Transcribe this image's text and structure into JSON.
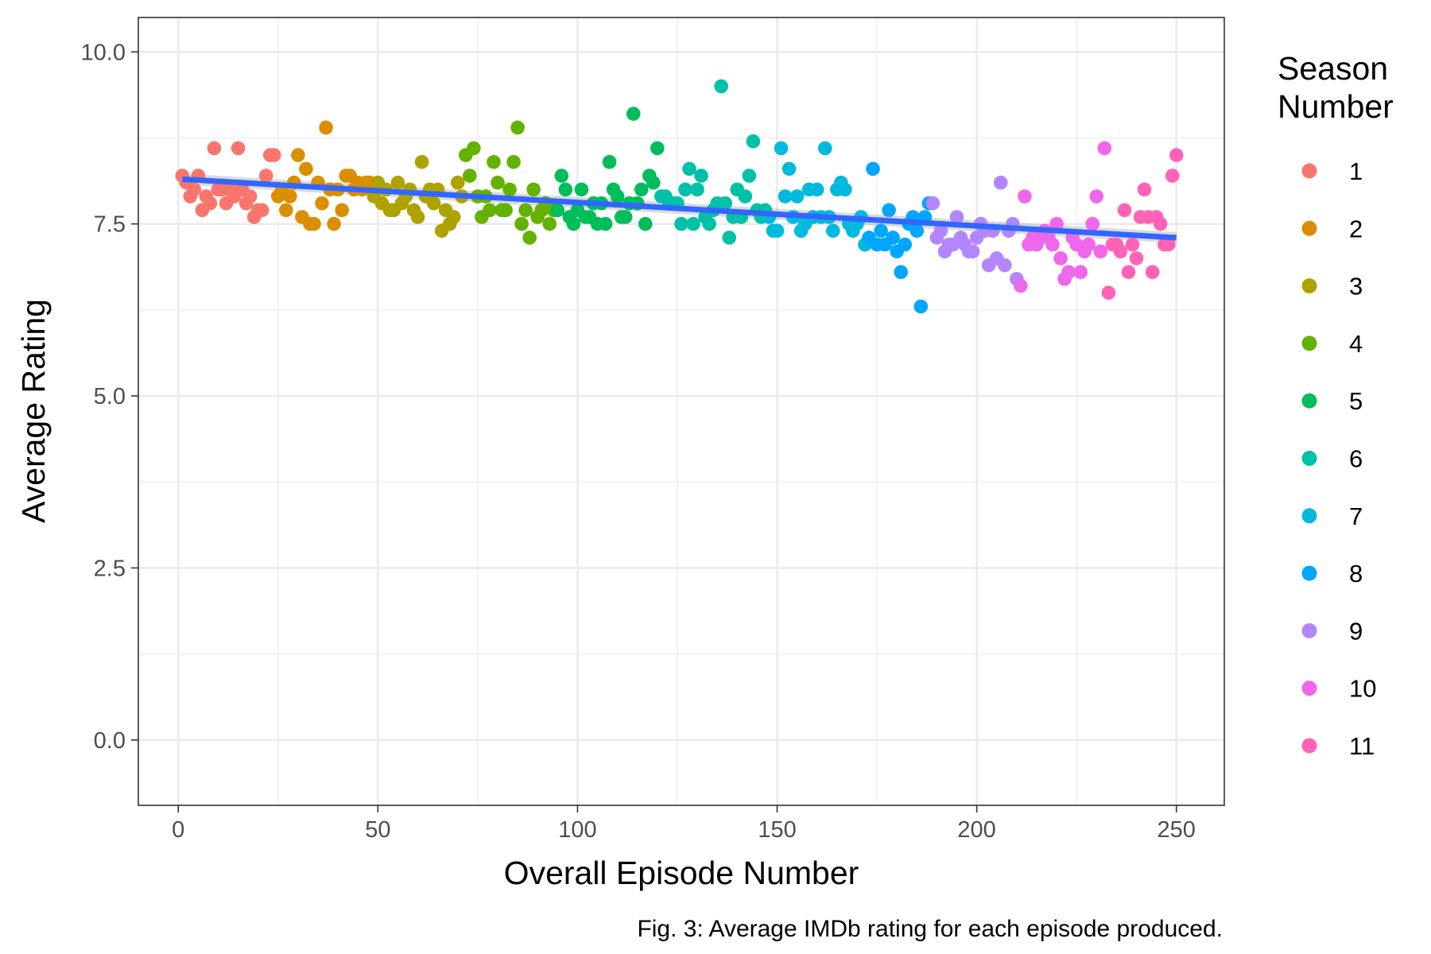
{
  "chart_data": {
    "type": "scatter",
    "title": "",
    "xlabel": "Overall Episode Number",
    "ylabel": "Average Rating",
    "caption": "Fig. 3: Average IMDb rating for each episode produced.",
    "xlim": [
      -10,
      262
    ],
    "ylim": [
      -0.95,
      10.5
    ],
    "xticks": [
      0,
      50,
      100,
      150,
      200,
      250
    ],
    "xtick_labels": [
      "0",
      "50",
      "100",
      "150",
      "200",
      "250"
    ],
    "yticks": [
      0,
      2.5,
      5,
      7.5,
      10
    ],
    "ytick_labels": [
      "0.0",
      "2.5",
      "5.0",
      "7.5",
      "10.0"
    ],
    "grid": true,
    "legend": {
      "title_lines": [
        "Season",
        "Number"
      ],
      "placement": "right",
      "entries": [
        "1",
        "2",
        "3",
        "4",
        "5",
        "6",
        "7",
        "8",
        "9",
        "10",
        "11"
      ]
    },
    "colors": {
      "1": "#F8766D",
      "2": "#DB8E00",
      "3": "#AEA200",
      "4": "#64B200",
      "5": "#00BD5C",
      "6": "#00C1A7",
      "7": "#00BADE",
      "8": "#00A6FF",
      "9": "#B385FF",
      "10": "#EF67EB",
      "11": "#FF63B6",
      "trend": "#3366FF"
    },
    "trend_line": {
      "x": [
        1,
        250
      ],
      "y": [
        8.15,
        7.3
      ]
    },
    "series": [
      {
        "name": "1",
        "x": [
          1,
          2,
          3,
          4,
          5,
          6,
          7,
          8,
          9,
          10,
          11,
          12,
          13,
          14,
          15,
          16,
          17,
          18,
          19,
          20,
          21,
          22,
          23,
          24
        ],
        "y": [
          8.2,
          8.1,
          7.9,
          8.0,
          8.2,
          7.7,
          7.9,
          7.8,
          8.6,
          8.0,
          8.0,
          7.8,
          8.0,
          7.9,
          8.6,
          8.0,
          7.8,
          7.9,
          7.6,
          7.7,
          7.7,
          8.2,
          8.5,
          8.5
        ]
      },
      {
        "name": "2",
        "x": [
          25,
          26,
          27,
          28,
          29,
          30,
          31,
          32,
          33,
          34,
          35,
          36,
          37,
          38,
          39,
          40,
          41,
          42,
          43,
          44,
          45,
          46,
          47,
          48
        ],
        "y": [
          7.9,
          8.0,
          7.7,
          7.9,
          8.1,
          8.5,
          7.6,
          8.3,
          7.5,
          7.5,
          8.1,
          7.8,
          8.9,
          8.0,
          7.5,
          8.0,
          7.7,
          8.2,
          8.2,
          8.0,
          8.1,
          8.0,
          8.1,
          8.1
        ]
      },
      {
        "name": "3",
        "x": [
          49,
          50,
          51,
          52,
          53,
          54,
          55,
          56,
          57,
          58,
          59,
          60,
          61,
          62,
          63,
          64,
          65,
          66,
          67,
          68,
          69,
          70,
          71
        ],
        "y": [
          7.9,
          8.1,
          7.8,
          8.0,
          7.7,
          7.7,
          8.1,
          7.8,
          7.9,
          8.0,
          7.7,
          7.6,
          8.4,
          7.9,
          8.0,
          7.8,
          8.0,
          7.4,
          7.7,
          7.5,
          7.6,
          8.1,
          7.9
        ]
      },
      {
        "name": "4",
        "x": [
          72,
          73,
          74,
          75,
          76,
          77,
          78,
          79,
          80,
          81,
          82,
          83,
          84,
          85,
          86,
          87,
          88,
          89,
          90,
          91,
          92,
          93,
          94
        ],
        "y": [
          8.5,
          8.2,
          8.6,
          7.9,
          7.6,
          7.9,
          7.7,
          8.4,
          8.1,
          7.7,
          7.7,
          8.0,
          8.4,
          8.9,
          7.5,
          7.7,
          7.3,
          8.0,
          7.6,
          7.7,
          7.8,
          7.5,
          7.7
        ]
      },
      {
        "name": "5",
        "x": [
          95,
          96,
          97,
          98,
          99,
          100,
          101,
          102,
          103,
          104,
          105,
          106,
          107,
          108,
          109,
          110,
          111,
          112,
          113,
          114,
          115,
          116,
          117,
          118,
          119,
          120
        ],
        "y": [
          7.7,
          8.2,
          8.0,
          7.6,
          7.5,
          7.7,
          8.0,
          7.6,
          7.6,
          7.8,
          7.5,
          7.8,
          7.5,
          8.4,
          8.0,
          7.9,
          7.6,
          7.6,
          7.8,
          9.1,
          7.8,
          8.0,
          7.5,
          8.2,
          8.1,
          8.6
        ]
      },
      {
        "name": "6",
        "x": [
          121,
          122,
          123,
          124,
          125,
          126,
          127,
          128,
          129,
          130,
          131,
          132,
          133,
          134,
          135,
          136,
          137,
          138,
          139,
          140,
          141,
          142,
          143,
          144,
          145,
          146,
          147
        ],
        "y": [
          7.9,
          7.9,
          7.8,
          7.8,
          7.8,
          7.5,
          8.0,
          8.3,
          7.5,
          8.0,
          8.2,
          7.6,
          7.5,
          7.7,
          7.8,
          9.5,
          7.8,
          7.3,
          7.6,
          8.0,
          7.6,
          7.9,
          8.2,
          8.7,
          7.7,
          7.6,
          7.7
        ]
      },
      {
        "name": "7",
        "x": [
          148,
          149,
          150,
          151,
          152,
          153,
          154,
          155,
          156,
          157,
          158,
          159,
          160,
          161,
          162,
          163,
          164,
          165,
          166,
          167,
          168,
          169,
          170,
          171,
          172
        ],
        "y": [
          7.6,
          7.4,
          7.4,
          8.6,
          7.9,
          8.3,
          7.6,
          7.9,
          7.4,
          7.5,
          8.0,
          7.6,
          8.0,
          7.6,
          8.6,
          7.6,
          7.4,
          8.0,
          8.1,
          8.0,
          7.5,
          7.4,
          7.5,
          7.6,
          7.2
        ]
      },
      {
        "name": "8",
        "x": [
          173,
          174,
          175,
          176,
          177,
          178,
          179,
          180,
          181,
          182,
          183,
          184,
          185,
          186,
          187,
          188
        ],
        "y": [
          7.3,
          8.3,
          7.2,
          7.4,
          7.2,
          7.7,
          7.3,
          7.1,
          6.8,
          7.2,
          7.5,
          7.6,
          7.4,
          6.3,
          7.6,
          7.8
        ]
      },
      {
        "name": "9",
        "x": [
          189,
          190,
          191,
          192,
          193,
          194,
          195,
          196,
          197,
          198,
          199,
          200,
          201,
          202,
          203,
          204,
          205,
          206,
          207,
          208,
          209,
          210
        ],
        "y": [
          7.8,
          7.3,
          7.4,
          7.1,
          7.2,
          7.2,
          7.6,
          7.3,
          7.2,
          7.1,
          7.1,
          7.3,
          7.5,
          7.4,
          6.9,
          7.4,
          7.0,
          8.1,
          6.9,
          7.4,
          7.5,
          6.7
        ]
      },
      {
        "name": "10",
        "x": [
          211,
          212,
          213,
          214,
          215,
          216,
          217,
          218,
          219,
          220,
          221,
          222,
          223,
          224,
          225,
          226,
          227,
          228,
          229,
          230,
          231,
          232
        ],
        "y": [
          6.6,
          7.9,
          7.2,
          7.3,
          7.2,
          7.3,
          7.4,
          7.3,
          7.2,
          7.5,
          7.0,
          6.7,
          6.8,
          7.3,
          7.2,
          6.8,
          7.1,
          7.2,
          7.5,
          7.9,
          7.1,
          8.6
        ]
      },
      {
        "name": "11",
        "x": [
          233,
          234,
          235,
          236,
          237,
          238,
          239,
          240,
          241,
          242,
          243,
          244,
          245,
          246,
          247,
          248,
          249,
          250
        ],
        "y": [
          6.5,
          7.2,
          7.2,
          7.1,
          7.7,
          6.8,
          7.2,
          7.0,
          7.6,
          8.0,
          7.6,
          6.8,
          7.6,
          7.5,
          7.2,
          7.2,
          8.2,
          8.5
        ]
      }
    ]
  }
}
